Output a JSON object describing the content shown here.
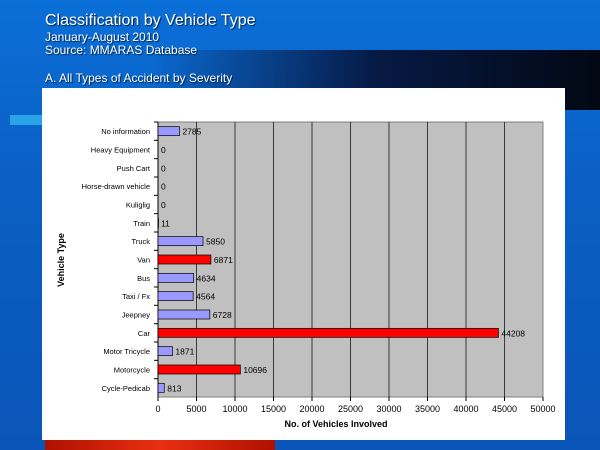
{
  "slide": {
    "title": "Classification by Vehicle Type",
    "period": "January-August 2010",
    "source": "Source: MMARAS Database",
    "section": "A. All Types of Accident by Severity"
  },
  "chart_data": {
    "type": "bar",
    "orientation": "horizontal",
    "categories": [
      "No information",
      "Heavy Equipment",
      "Push Cart",
      "Horse-drawn vehicle",
      "Kuliglig",
      "Train",
      "Truck",
      "Van",
      "Bus",
      "Taxi / Fx",
      "Jeepney",
      "Car",
      "Motor Tricycle",
      "Motorcycle",
      "Cycle-Pedicab"
    ],
    "values": [
      2785,
      0,
      0,
      0,
      0,
      11,
      5850,
      6871,
      4634,
      4564,
      6728,
      44208,
      1871,
      10696,
      813
    ],
    "highlighted": [
      false,
      false,
      false,
      false,
      false,
      false,
      false,
      true,
      false,
      false,
      false,
      true,
      false,
      true,
      false
    ],
    "colors": {
      "normal": "#9999ff",
      "highlight": "#ff0000",
      "plot_bg": "#c0c0c0"
    },
    "xlabel": "No. of Vehicles Involved",
    "ylabel": "Vehicle Type",
    "xlim": [
      0,
      50000
    ],
    "xticks": [
      0,
      5000,
      10000,
      15000,
      20000,
      25000,
      30000,
      35000,
      40000,
      45000,
      50000
    ],
    "grid": true,
    "legend": "none"
  }
}
